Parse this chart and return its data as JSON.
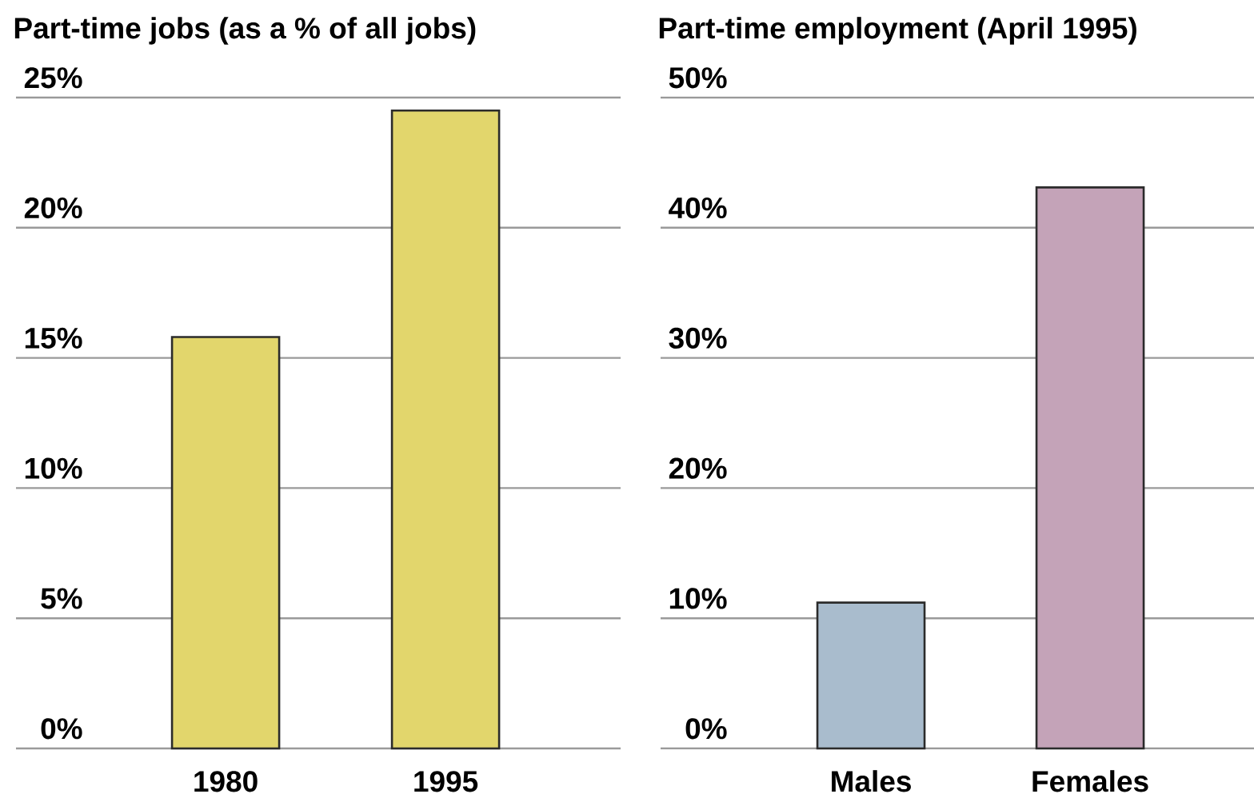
{
  "chart_data": [
    {
      "type": "bar",
      "title": "Part-time jobs (as a % of all jobs)",
      "categories": [
        "1980",
        "1995"
      ],
      "values": [
        15.8,
        24.5
      ],
      "color": "#e2d66c",
      "ylim": [
        0,
        25
      ],
      "yticks": [
        {
          "value": 0,
          "label": "0%"
        },
        {
          "value": 5,
          "label": "5%"
        },
        {
          "value": 10,
          "label": "10%"
        },
        {
          "value": 15,
          "label": "15%"
        },
        {
          "value": 20,
          "label": "20%"
        },
        {
          "value": 25,
          "label": "25%"
        }
      ],
      "grid": "y"
    },
    {
      "type": "bar",
      "title": "Part-time employment (April 1995)",
      "categories": [
        "Males",
        "Females"
      ],
      "values": [
        11.2,
        43.1
      ],
      "colors": [
        "#a9bccd",
        "#c4a3b8"
      ],
      "ylim": [
        0,
        50
      ],
      "yticks": [
        {
          "value": 0,
          "label": "0%"
        },
        {
          "value": 10,
          "label": "10%"
        },
        {
          "value": 20,
          "label": "20%"
        },
        {
          "value": 30,
          "label": "30%"
        },
        {
          "value": 40,
          "label": "40%"
        },
        {
          "value": 50,
          "label": "50%"
        }
      ],
      "grid": "y"
    }
  ]
}
